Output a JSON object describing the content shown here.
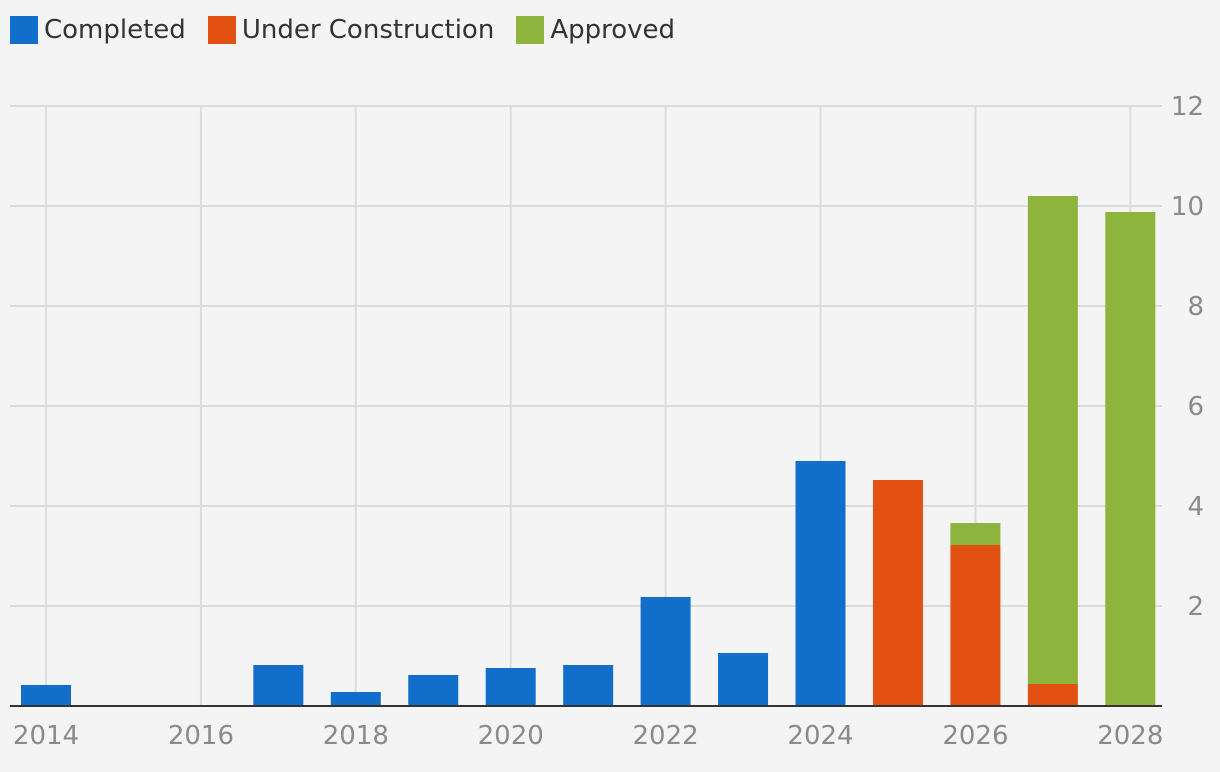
{
  "chart_data": {
    "type": "bar",
    "stacked": true,
    "x": [
      2014,
      2015,
      2016,
      2017,
      2018,
      2019,
      2020,
      2021,
      2022,
      2023,
      2024,
      2025,
      2026,
      2027,
      2028
    ],
    "series": [
      {
        "name": "Completed",
        "color": "#126ecb",
        "values": [
          0.42,
          0,
          0,
          0.82,
          0.28,
          0.62,
          0.76,
          0.82,
          2.18,
          1.06,
          4.9,
          0,
          0,
          0,
          0
        ]
      },
      {
        "name": "Under Construction",
        "color": "#e35112",
        "values": [
          0,
          0,
          0,
          0,
          0,
          0,
          0,
          0,
          0,
          0,
          0,
          4.52,
          3.22,
          0.44,
          0
        ]
      },
      {
        "name": "Approved",
        "color": "#8db53e",
        "values": [
          0,
          0,
          0,
          0,
          0,
          0,
          0,
          0,
          0,
          0,
          0,
          0,
          0.44,
          9.76,
          9.88
        ]
      }
    ],
    "xticks": [
      "2014",
      "2016",
      "2018",
      "2020",
      "2022",
      "2024",
      "2026",
      "2028"
    ],
    "yticks": [
      "2",
      "4",
      "6",
      "8",
      "10",
      "12"
    ],
    "ylim": [
      0,
      12
    ],
    "y_axis_position": "right",
    "grid": true,
    "legend_position": "top-left",
    "xlabel": "",
    "ylabel": ""
  }
}
